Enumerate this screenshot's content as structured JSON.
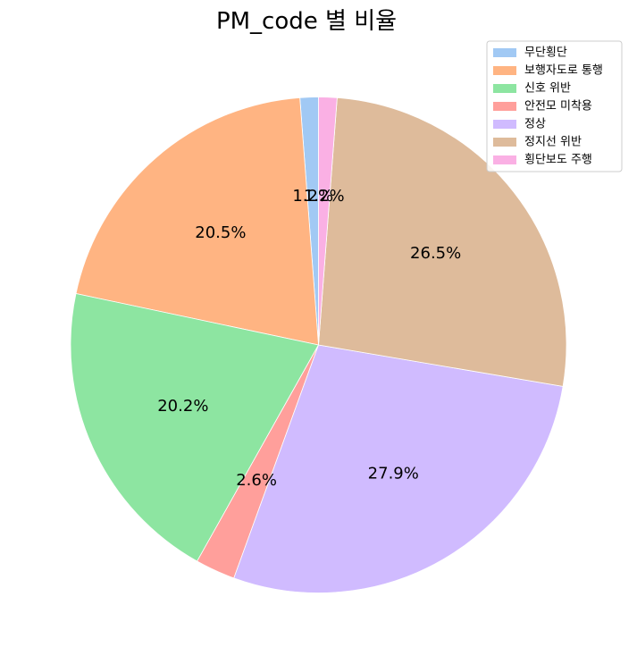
{
  "chart_data": {
    "type": "pie",
    "title": "PM_code 별 비율",
    "categories": [
      "무단횡단",
      "보행자도로 통행",
      "신호 위반",
      "안전모 미착용",
      "정상",
      "정지선 위반",
      "횡단보도 주행"
    ],
    "values": [
      1.2,
      20.5,
      20.2,
      2.6,
      27.9,
      26.5,
      1.2
    ],
    "labels": [
      "1.2%",
      "20.5%",
      "20.2%",
      "2.6%",
      "27.9%",
      "26.5%",
      "1.2%"
    ],
    "colors": [
      "#a1c9f4",
      "#ffb482",
      "#8de5a1",
      "#ff9f9b",
      "#d0bbff",
      "#debb9b",
      "#fab0e4"
    ],
    "start_angle": 90,
    "direction": "counterclockwise",
    "legend_position": "top-right"
  }
}
